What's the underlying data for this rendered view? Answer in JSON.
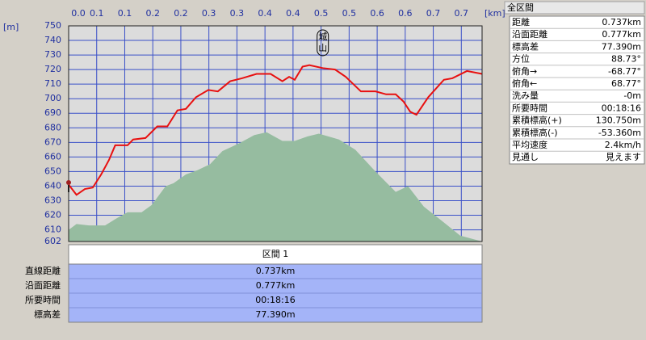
{
  "chart_data": {
    "type": "line",
    "y_unit": "[m]",
    "x_unit": "[km]",
    "xlim": [
      0,
      0.737
    ],
    "ylim": [
      602,
      750
    ],
    "xticks": [
      {
        "value": 0,
        "label": "0.0"
      },
      {
        "value": 0.05,
        "label": "0.1"
      },
      0.1,
      {
        "value": 0.15,
        "label": "0.2"
      },
      0.2,
      {
        "value": 0.25,
        "label": "0.3"
      },
      0.3,
      {
        "value": 0.35,
        "label": "0.4"
      },
      0.4,
      {
        "value": 0.45,
        "label": "0.5"
      },
      0.5,
      {
        "value": 0.55,
        "label": "0.6"
      },
      0.6,
      {
        "value": 0.65,
        "label": "0.7"
      },
      0.7
    ],
    "yticks": [
      750,
      740,
      730,
      720,
      710,
      700,
      690,
      680,
      670,
      660,
      650,
      640,
      630,
      620,
      610,
      602
    ],
    "grid": true,
    "series": [
      {
        "type": "area",
        "color": "#96bca0",
        "x": [
          0,
          0.014,
          0.036,
          0.065,
          0.086,
          0.105,
          0.13,
          0.148,
          0.173,
          0.187,
          0.209,
          0.23,
          0.252,
          0.274,
          0.302,
          0.331,
          0.353,
          0.381,
          0.403,
          0.425,
          0.446,
          0.482,
          0.511,
          0.547,
          0.583,
          0.605,
          0.633,
          0.669,
          0.698,
          0.737
        ],
        "values": [
          610,
          614,
          613,
          613,
          618,
          622,
          622,
          627,
          640,
          642,
          648,
          651,
          655,
          664,
          669,
          675,
          677,
          671,
          671,
          674,
          676,
          672,
          665,
          650,
          636,
          640,
          626,
          615,
          606,
          602
        ]
      },
      {
        "type": "line",
        "color": "#e81010",
        "x": [
          0,
          0.014,
          0.029,
          0.043,
          0.058,
          0.072,
          0.083,
          0.105,
          0.115,
          0.137,
          0.158,
          0.176,
          0.194,
          0.209,
          0.227,
          0.249,
          0.266,
          0.288,
          0.309,
          0.335,
          0.36,
          0.381,
          0.393,
          0.403,
          0.417,
          0.429,
          0.453,
          0.475,
          0.494,
          0.521,
          0.547,
          0.566,
          0.583,
          0.597,
          0.609,
          0.62,
          0.641,
          0.669,
          0.684,
          0.71,
          0.737
        ],
        "values": [
          641,
          634,
          638,
          639,
          648,
          658,
          668,
          668,
          672,
          673,
          681,
          681,
          692,
          693,
          701,
          706,
          705,
          712,
          714,
          717,
          717,
          712,
          715,
          713,
          722,
          723,
          721,
          720,
          715,
          705,
          705,
          703,
          703,
          698,
          691,
          689,
          701,
          713,
          714,
          719,
          717
        ]
      }
    ],
    "annotations": [
      {
        "text": "城",
        "x": 0.453
      },
      {
        "text": "山",
        "x": 0.453
      }
    ]
  },
  "summary": {
    "title": "全区間",
    "rows": [
      [
        "距離",
        "0.737km"
      ],
      [
        "沿面距離",
        "0.777km"
      ],
      [
        "標高差",
        "77.390m"
      ],
      [
        "方位",
        "88.73°"
      ],
      [
        "俯角→",
        "-68.77°"
      ],
      [
        "俯角←",
        "68.77°"
      ],
      [
        "洗み量",
        "-0m"
      ],
      [
        "所要時間",
        "00:18:16"
      ],
      [
        "累積標高(+)",
        "130.750m"
      ],
      [
        "累積標高(-)",
        "-53.360m"
      ],
      [
        "平均速度",
        "2.4km/h"
      ],
      [
        "見通し",
        "見えます"
      ]
    ]
  },
  "section": {
    "title": "区間 1",
    "rows": [
      [
        "直線距離",
        "0.737km"
      ],
      [
        "沿面距離",
        "0.777km"
      ],
      [
        "所要時間",
        "00:18:16"
      ],
      [
        "標高差",
        "77.390m"
      ]
    ]
  }
}
